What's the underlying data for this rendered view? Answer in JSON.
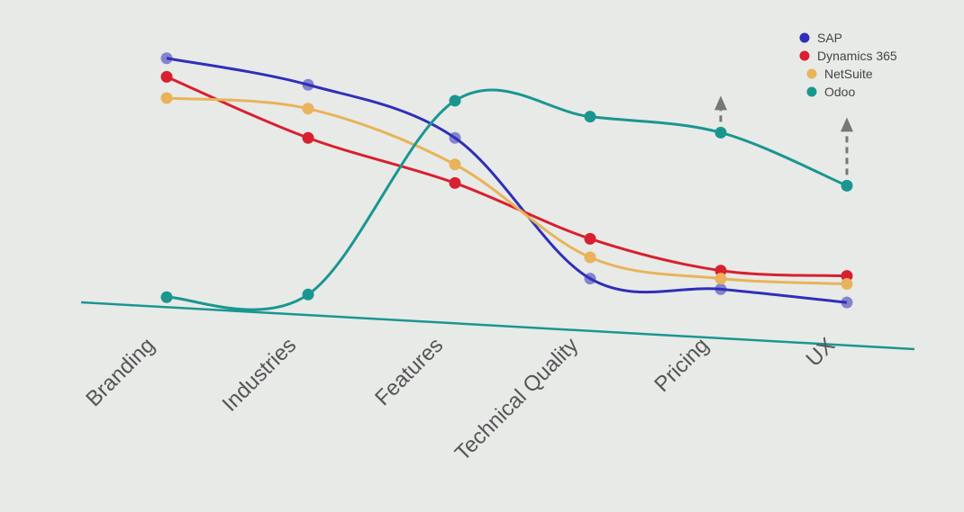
{
  "chart_data": {
    "type": "line",
    "categories": [
      "Branding",
      "Industries",
      "Features",
      "Technical Quality",
      "Pricing",
      "UX"
    ],
    "series": [
      {
        "name": "SAP",
        "color": "#2f2fb8",
        "values": [
          9.5,
          8.5,
          6.5,
          1.2,
          0.8,
          0.3
        ]
      },
      {
        "name": "Dynamics 365",
        "color": "#d8202e",
        "values": [
          8.8,
          6.5,
          4.8,
          2.7,
          1.5,
          1.3
        ]
      },
      {
        "name": "NetSuite",
        "color": "#e8b35a",
        "values": [
          8.0,
          7.6,
          5.5,
          2.0,
          1.2,
          1.0
        ]
      },
      {
        "name": "Odoo",
        "color": "#1a9690",
        "values": [
          0.5,
          0.6,
          7.9,
          7.3,
          6.7,
          4.7
        ]
      }
    ],
    "ylim": [
      0,
      10
    ],
    "legend": "top-right",
    "smooth": true
  }
}
